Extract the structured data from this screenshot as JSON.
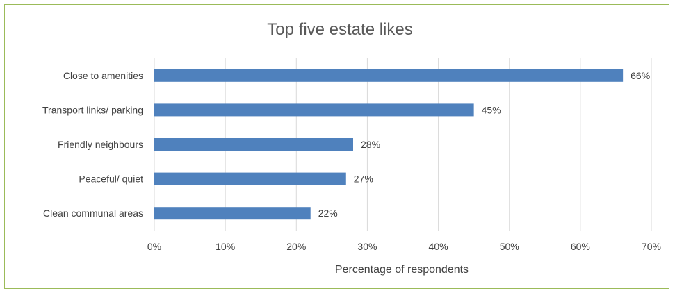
{
  "chart_data": {
    "type": "bar",
    "orientation": "horizontal",
    "title": "Top five estate likes",
    "xlabel": "Percentage of respondents",
    "ylabel": "",
    "categories": [
      "Close to amenities",
      "Transport links/ parking",
      "Friendly neighbours",
      "Peaceful/ quiet",
      "Clean communal areas"
    ],
    "values": [
      66,
      45,
      28,
      27,
      22
    ],
    "data_labels": [
      "66%",
      "45%",
      "28%",
      "27%",
      "22%"
    ],
    "xlim": [
      0,
      70
    ],
    "ticks": [
      0,
      10,
      20,
      30,
      40,
      50,
      60,
      70
    ],
    "tick_labels": [
      "0%",
      "10%",
      "20%",
      "30%",
      "40%",
      "50%",
      "60%",
      "70%"
    ],
    "grid": "vertical",
    "bar_color": "#4f81bd"
  }
}
